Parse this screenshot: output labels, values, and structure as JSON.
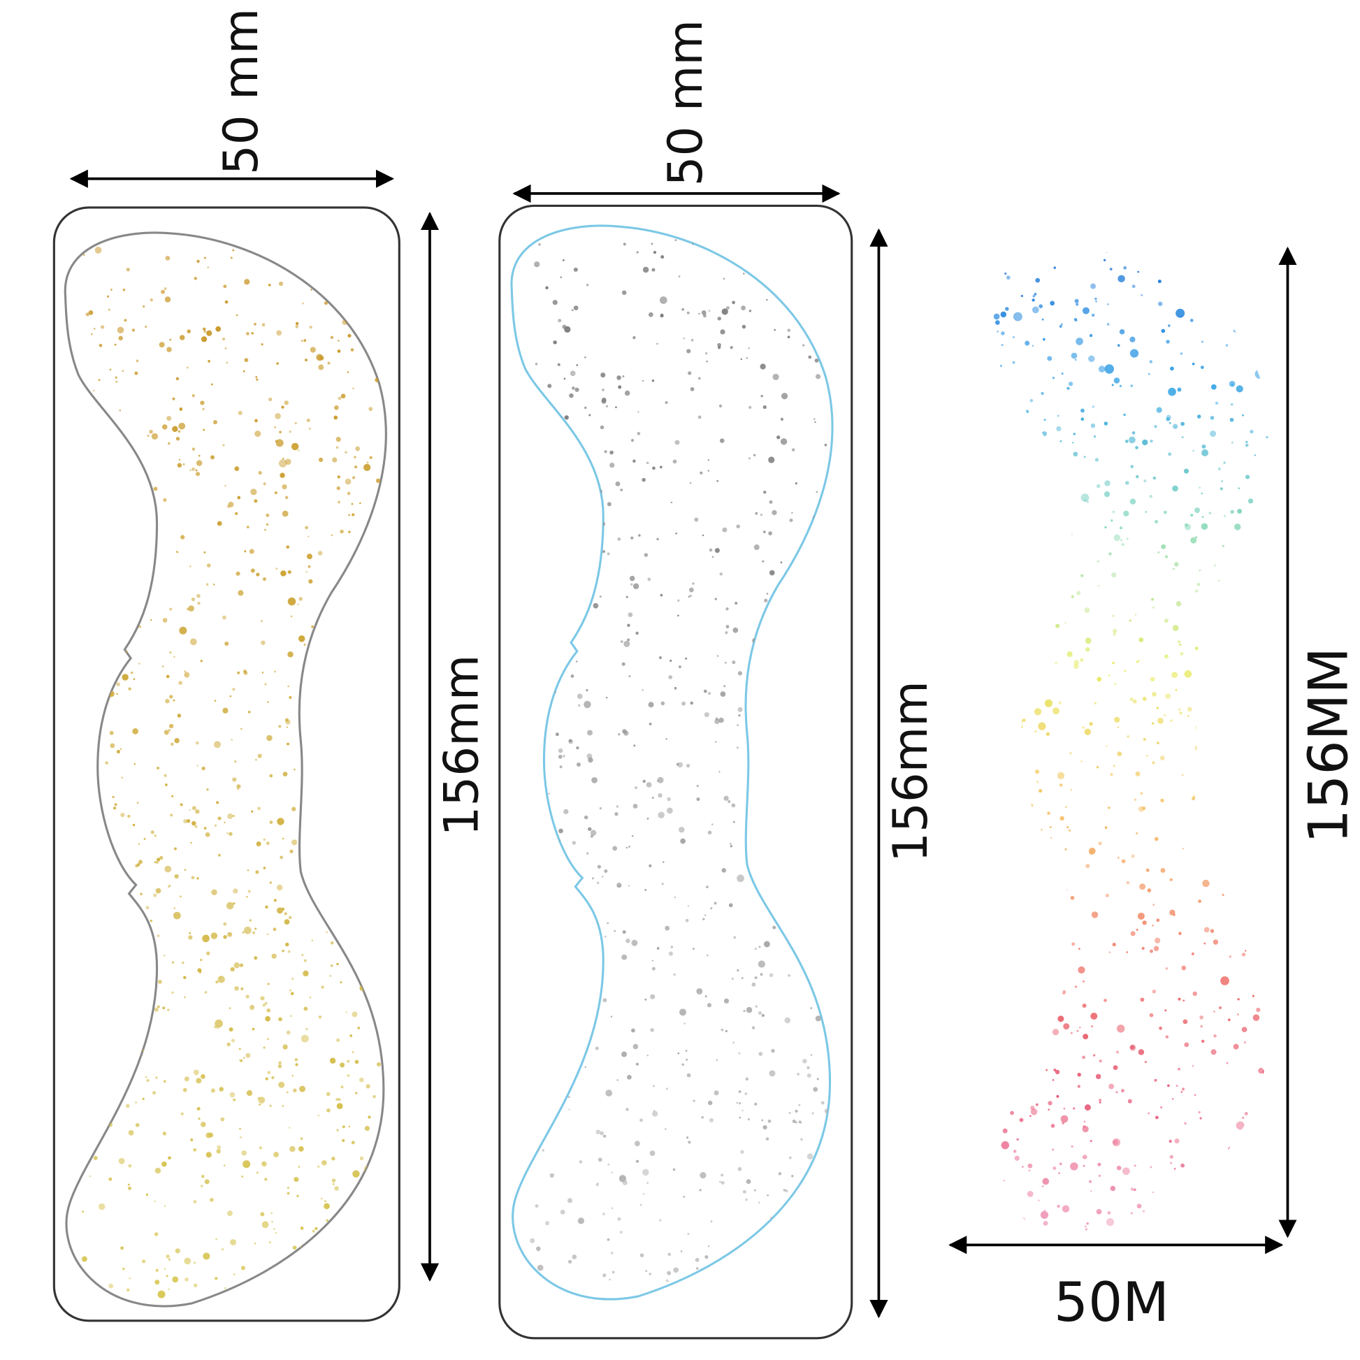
{
  "panels": [
    {
      "width_label": "50 mm",
      "height_label": "156mm",
      "outline_color": "#888888",
      "dot_colors": [
        "#c9962a",
        "#d9c95a"
      ]
    },
    {
      "width_label": "50 mm",
      "height_label": "156mm",
      "outline_color": "#7cc8e6",
      "dot_colors": [
        "#777777",
        "#bbbbbb"
      ]
    },
    {
      "width_label": "50M",
      "height_label": "156MM",
      "dot_colors": [
        "#1f6fd6",
        "#3aa6e8",
        "#8fdcc0",
        "#e8ee6a",
        "#f5c060",
        "#f07a6a",
        "#e85a7a",
        "#f0a0c0"
      ]
    }
  ]
}
